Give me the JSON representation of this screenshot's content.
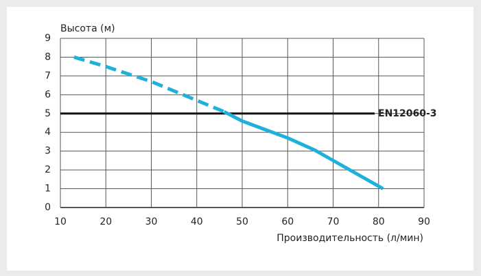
{
  "chart_data": {
    "type": "line",
    "y_label": "Высота (м)",
    "x_label": "Производительность (л/мин)",
    "xlim": [
      10,
      90
    ],
    "xticks": [
      10,
      20,
      30,
      40,
      50,
      60,
      70,
      80,
      90
    ],
    "ylim": [
      0,
      9
    ],
    "yticks": [
      0,
      1,
      2,
      3,
      4,
      5,
      6,
      7,
      8,
      9
    ],
    "grid": true,
    "grid_color": "#555555",
    "reference": {
      "value": 5,
      "label": "EN12060-3",
      "color": "#111111",
      "label_color": "#1aa9d3"
    },
    "series": [
      {
        "color": "#1fb1da",
        "style": "dashed",
        "x": [
          13,
          20,
          30,
          40,
          46
        ],
        "values": [
          8,
          7.5,
          6.7,
          5.7,
          5.1
        ]
      },
      {
        "color": "#1fb1da",
        "style": "solid",
        "x": [
          46,
          50,
          60,
          66,
          70,
          81
        ],
        "values": [
          5.1,
          4.6,
          3.7,
          3.05,
          2.5,
          1
        ]
      }
    ]
  }
}
